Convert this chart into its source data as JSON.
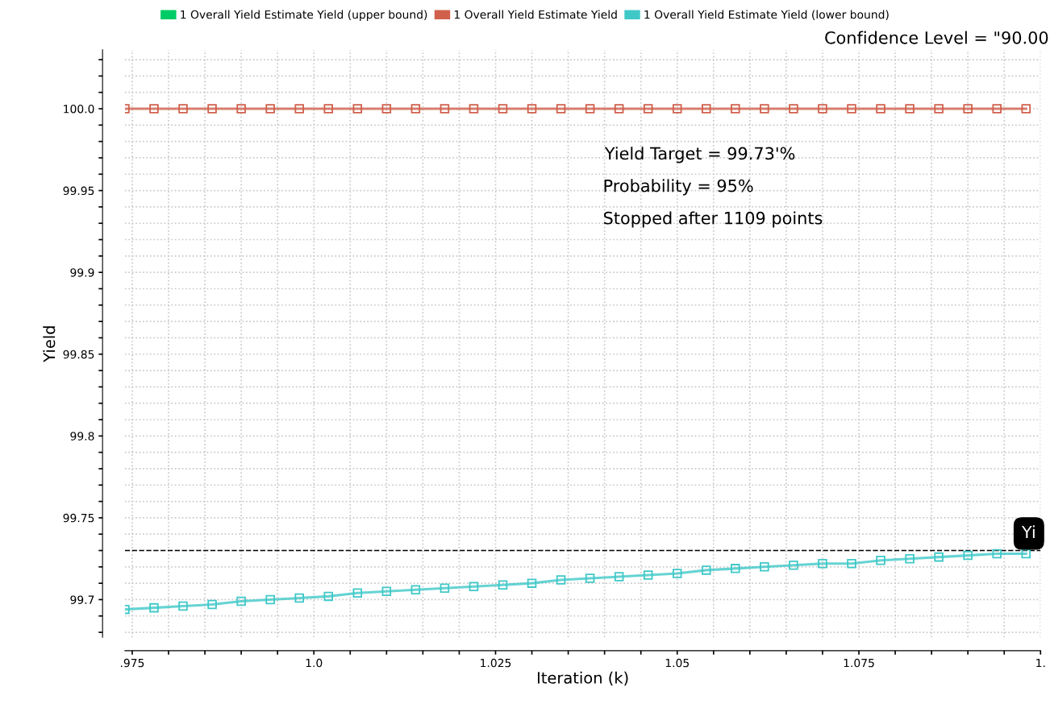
{
  "chart_data": {
    "type": "line",
    "xlabel": "Iteration (k)",
    "ylabel": "Yield",
    "x": [
      0.974,
      0.978,
      0.982,
      0.986,
      0.99,
      0.994,
      0.998,
      1.002,
      1.006,
      1.01,
      1.014,
      1.018,
      1.022,
      1.026,
      1.03,
      1.034,
      1.038,
      1.042,
      1.046,
      1.05,
      1.054,
      1.058,
      1.062,
      1.066,
      1.07,
      1.074,
      1.078,
      1.082,
      1.086,
      1.09,
      1.094,
      1.098
    ],
    "series": [
      {
        "name": "1 Overall Yield Estimate Yield (upper bound)",
        "color": "#00cc66",
        "values": [
          null,
          null,
          null,
          null,
          null,
          null,
          null,
          null,
          null,
          null,
          null,
          null,
          null,
          null,
          null,
          null,
          null,
          null,
          null,
          null,
          null,
          null,
          null,
          null,
          null,
          null,
          null,
          null,
          null,
          null,
          null,
          null
        ]
      },
      {
        "name": "1 Overall Yield Estimate Yield",
        "color": "#d0604c",
        "values": [
          100,
          100,
          100,
          100,
          100,
          100,
          100,
          100,
          100,
          100,
          100,
          100,
          100,
          100,
          100,
          100,
          100,
          100,
          100,
          100,
          100,
          100,
          100,
          100,
          100,
          100,
          100,
          100,
          100,
          100,
          100,
          100
        ]
      },
      {
        "name": "1 Overall Yield Estimate Yield (lower bound)",
        "color": "#40c8c8",
        "values": [
          99.694,
          99.695,
          99.696,
          99.697,
          99.699,
          99.7,
          99.701,
          99.702,
          99.704,
          99.705,
          99.706,
          99.707,
          99.708,
          99.709,
          99.71,
          99.712,
          99.713,
          99.714,
          99.715,
          99.716,
          99.718,
          99.719,
          99.72,
          99.721,
          99.722,
          99.722,
          99.724,
          99.725,
          99.726,
          99.727,
          99.728,
          99.728
        ]
      }
    ],
    "xlim": [
      0.974,
      1.1
    ],
    "ylim": [
      99.677,
      100.036
    ],
    "xticks": [
      {
        "value": 0.975,
        "label": ".975"
      },
      {
        "value": 0.98,
        "label": null
      },
      {
        "value": 0.985,
        "label": null
      },
      {
        "value": 0.99,
        "label": null
      },
      {
        "value": 0.995,
        "label": null
      },
      {
        "value": 1.0,
        "label": "1.0"
      },
      {
        "value": 1.005,
        "label": null
      },
      {
        "value": 1.01,
        "label": null
      },
      {
        "value": 1.015,
        "label": null
      },
      {
        "value": 1.02,
        "label": null
      },
      1.025,
      {
        "value": 1.03,
        "label": null
      },
      {
        "value": 1.035,
        "label": null
      },
      {
        "value": 1.04,
        "label": null
      },
      {
        "value": 1.045,
        "label": null
      },
      1.05,
      {
        "value": 1.055,
        "label": null
      },
      {
        "value": 1.06,
        "label": null
      },
      {
        "value": 1.065,
        "label": null
      },
      {
        "value": 1.07,
        "label": null
      },
      1.075,
      {
        "value": 1.08,
        "label": null
      },
      {
        "value": 1.085,
        "label": null
      },
      {
        "value": 1.09,
        "label": null
      },
      {
        "value": 1.095,
        "label": null
      },
      {
        "value": 1.1,
        "label": "1."
      }
    ],
    "yticks": [
      {
        "value": 99.68,
        "label": null
      },
      {
        "value": 99.69,
        "label": null
      },
      {
        "value": 99.7,
        "label": "99.7"
      },
      {
        "value": 99.71,
        "label": null
      },
      {
        "value": 99.72,
        "label": null
      },
      {
        "value": 99.73,
        "label": null
      },
      {
        "value": 99.74,
        "label": null
      },
      99.75,
      {
        "value": 99.76,
        "label": null
      },
      {
        "value": 99.77,
        "label": null
      },
      {
        "value": 99.78,
        "label": null
      },
      {
        "value": 99.79,
        "label": null
      },
      {
        "value": 99.8,
        "label": "99.8"
      },
      {
        "value": 99.81,
        "label": null
      },
      {
        "value": 99.82,
        "label": null
      },
      {
        "value": 99.83,
        "label": null
      },
      {
        "value": 99.84,
        "label": null
      },
      99.85,
      {
        "value": 99.86,
        "label": null
      },
      {
        "value": 99.87,
        "label": null
      },
      {
        "value": 99.88,
        "label": null
      },
      {
        "value": 99.89,
        "label": null
      },
      {
        "value": 99.9,
        "label": "99.9"
      },
      {
        "value": 99.91,
        "label": null
      },
      {
        "value": 99.92,
        "label": null
      },
      {
        "value": 99.93,
        "label": null
      },
      {
        "value": 99.94,
        "label": null
      },
      99.95,
      {
        "value": 99.96,
        "label": null
      },
      {
        "value": 99.97,
        "label": null
      },
      {
        "value": 99.98,
        "label": null
      },
      {
        "value": 99.99,
        "label": null
      },
      {
        "value": 100.0,
        "label": "100.0"
      },
      {
        "value": 100.01,
        "label": null
      },
      {
        "value": 100.02,
        "label": null
      },
      {
        "value": 100.03,
        "label": null
      }
    ],
    "ref_lines": [
      {
        "axis": "y",
        "value": 99.73,
        "label": "Yi",
        "color": "#000000",
        "line_style": "dashed"
      }
    ],
    "annotations": [
      "Confidence Level = \"90.00",
      "Yield Target = 99.73'%",
      "Probability = 95%",
      "Stopped after 1109 points"
    ],
    "grid": true,
    "legend": "top",
    "marker": "square",
    "line_style": "solid"
  }
}
